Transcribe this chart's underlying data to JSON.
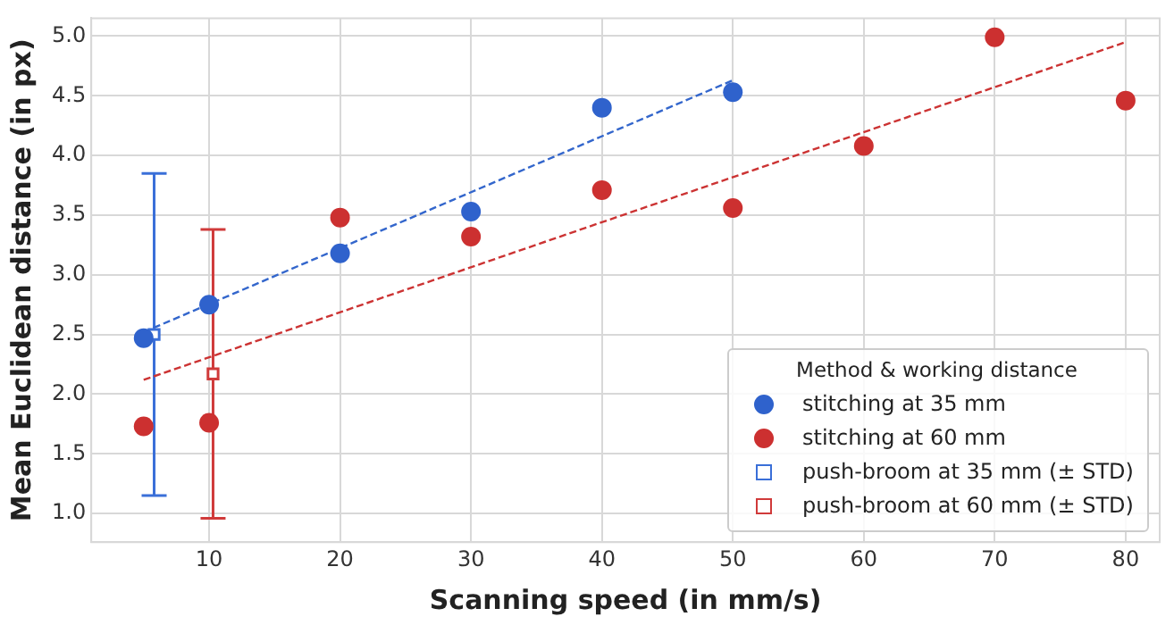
{
  "chart_data": {
    "type": "scatter",
    "xlabel": "Scanning speed (in mm/s)",
    "ylabel": "Mean Euclidean distance (in px)",
    "legend_title": "Method & working distance",
    "legend": "bottom right",
    "grid": true,
    "xlim": [
      1,
      82.6
    ],
    "ylim": [
      0.76,
      5.15
    ],
    "xticks": [
      10,
      20,
      30,
      40,
      50,
      60,
      70,
      80
    ],
    "yticks": [
      {
        "value": 1,
        "label": "1.0"
      },
      {
        "value": 1.5,
        "label": "1.5"
      },
      {
        "value": 2,
        "label": "2.0"
      },
      {
        "value": 2.5,
        "label": "2.5"
      },
      {
        "value": 3,
        "label": "3.0"
      },
      {
        "value": 3.5,
        "label": "3.5"
      },
      {
        "value": 4,
        "label": "4.0"
      },
      {
        "value": 4.5,
        "label": "4.5"
      },
      {
        "value": 5,
        "label": "5.0"
      }
    ],
    "series": [
      {
        "type": "line",
        "color": "#3366cc",
        "line_style": "dashed",
        "marker": "none",
        "x": [
          5,
          50
        ],
        "values": [
          2.52,
          4.63
        ]
      },
      {
        "type": "line",
        "color": "#cc3333",
        "line_style": "dashed",
        "marker": "none",
        "x": [
          5,
          80
        ],
        "values": [
          2.12,
          4.95
        ]
      },
      {
        "name": "stitching at 35 mm",
        "color": "#2f62cc",
        "marker": "circle",
        "x": [
          5,
          10,
          20,
          30,
          40,
          50
        ],
        "values": [
          2.47,
          2.75,
          3.18,
          3.53,
          4.4,
          4.53
        ]
      },
      {
        "name": "stitching at 60 mm",
        "color": "#cc3030",
        "marker": "circle",
        "x": [
          5,
          10,
          20,
          30,
          40,
          50,
          60,
          70,
          80
        ],
        "values": [
          1.73,
          1.76,
          3.48,
          3.32,
          3.71,
          3.56,
          4.08,
          4.99,
          4.46
        ]
      },
      {
        "name": "push-broom at 35 mm (± STD)",
        "color": "#3a6fd8",
        "marker": "square",
        "x": [
          5.8
        ],
        "values": [
          2.5
        ],
        "errors": [
          1.35
        ]
      },
      {
        "name": "push-broom at 60 mm (± STD)",
        "color": "#d03a3a",
        "marker": "square",
        "x": [
          10.3
        ],
        "values": [
          2.17
        ],
        "errors": [
          1.21
        ]
      }
    ]
  }
}
